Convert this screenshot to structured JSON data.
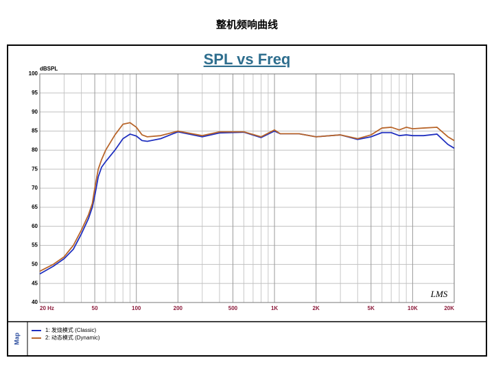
{
  "page_title": "整机频响曲线",
  "chart_data": {
    "type": "line",
    "title": "SPL vs Freq",
    "y_label": "dBSPL",
    "annotation": "LMS",
    "legend_title": "Map",
    "log_x": true,
    "grid": true,
    "x": [
      20,
      25,
      30,
      35,
      40,
      45,
      48,
      50,
      53,
      56,
      60,
      70,
      80,
      90,
      100,
      110,
      120,
      150,
      200,
      300,
      400,
      600,
      800,
      1000,
      1100,
      1500,
      2000,
      3000,
      4000,
      5000,
      6000,
      7000,
      8000,
      9000,
      10000,
      12000,
      15000,
      18000,
      20000
    ],
    "series": [
      {
        "name": "1:  发烧模式 (Classic)",
        "color": "#1f2fbf",
        "values": [
          47.5,
          49.5,
          51.5,
          54,
          58,
          62,
          65,
          68,
          73,
          75.5,
          77,
          80,
          83,
          84.2,
          83.7,
          82.5,
          82.3,
          83,
          84.8,
          83.5,
          84.5,
          84.7,
          83.3,
          85,
          84.3,
          84.3,
          83.5,
          84,
          82.8,
          83.5,
          84.6,
          84.6,
          83.8,
          84,
          83.8,
          83.8,
          84.2,
          81.5,
          80.5
        ]
      },
      {
        "name": "2:  动态模式 (Dynamic)",
        "color": "#b8652a",
        "values": [
          48.2,
          50,
          52,
          55,
          59,
          63,
          66,
          70,
          75,
          77.5,
          80,
          84,
          86.8,
          87.2,
          86,
          84,
          83.5,
          83.8,
          85,
          83.8,
          84.8,
          84.8,
          83.5,
          85.3,
          84.3,
          84.3,
          83.5,
          84,
          83,
          84,
          85.8,
          86,
          85.3,
          86,
          85.6,
          85.8,
          86,
          83.5,
          82.5
        ]
      }
    ],
    "xlim": [
      20,
      20000
    ],
    "xticks": [
      {
        "value": 20,
        "label": "20 Hz"
      },
      50,
      100,
      200,
      500,
      {
        "value": 1000,
        "label": "1K"
      },
      {
        "value": 2000,
        "label": "2K"
      },
      {
        "value": 5000,
        "label": "5K"
      },
      {
        "value": 10000,
        "label": "10K"
      },
      {
        "value": 20000,
        "label": "20K"
      }
    ],
    "xgrid_minor": [
      30,
      40,
      60,
      70,
      80,
      90,
      300,
      400,
      600,
      700,
      800,
      900,
      3000,
      4000,
      6000,
      7000,
      8000,
      9000
    ],
    "ylim": [
      40,
      100
    ],
    "yticks": [
      40,
      45,
      50,
      55,
      60,
      65,
      70,
      75,
      80,
      85,
      90,
      95,
      100
    ]
  }
}
